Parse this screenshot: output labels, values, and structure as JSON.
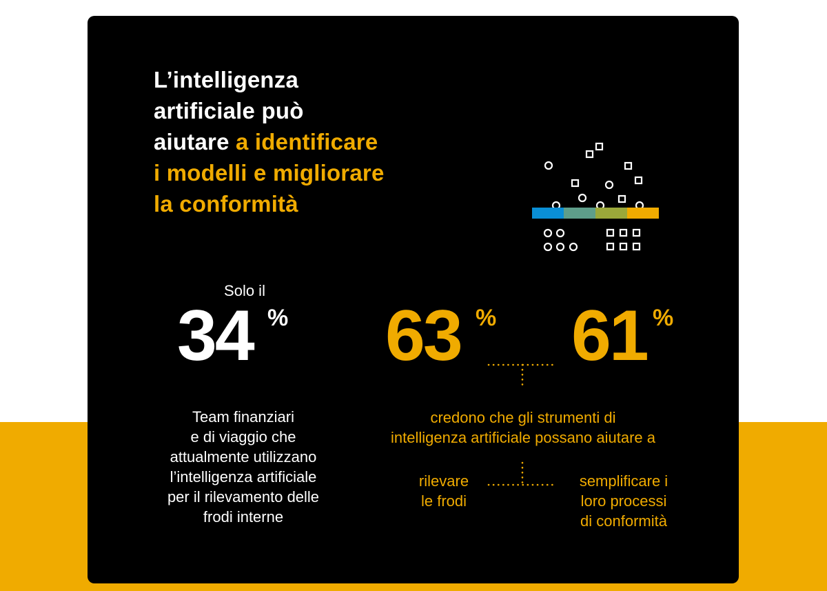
{
  "headline": {
    "line1": "L’intelligenza",
    "line2": "artificiale può",
    "line3_white": "aiutare ",
    "line3_yellow": "a identificare",
    "line4": "i modelli e migliorare",
    "line5": "la conformità"
  },
  "stat_34": {
    "prefix": "Solo il",
    "value": "34",
    "unit": "%",
    "description_lines": [
      "Team finanziari",
      "e di viaggio che",
      "attualmente utilizzano",
      "l’intelligenza artificiale",
      "per il rilevamento delle",
      "frodi interne"
    ]
  },
  "stat_63": {
    "value": "63",
    "unit": "%"
  },
  "stat_61": {
    "value": "61",
    "unit": "%"
  },
  "shared_description_lines": [
    "credono che gli strumenti di",
    "intelligenza artificiale possano aiutare a"
  ],
  "left_outcome_lines": [
    "rilevare",
    "le frodi"
  ],
  "right_outcome_lines": [
    "semplificare i",
    "loro processi",
    "di conformità"
  ],
  "colors": {
    "accent": "#f0ab00",
    "background": "#000000",
    "text": "#ffffff",
    "bar_blue": "#0a8fd6",
    "bar_teal": "#5e9e8a",
    "bar_olive": "#9aa83a",
    "bar_gold": "#f0ab00"
  },
  "icons": [
    "filter-funnel-illustration-icon"
  ]
}
